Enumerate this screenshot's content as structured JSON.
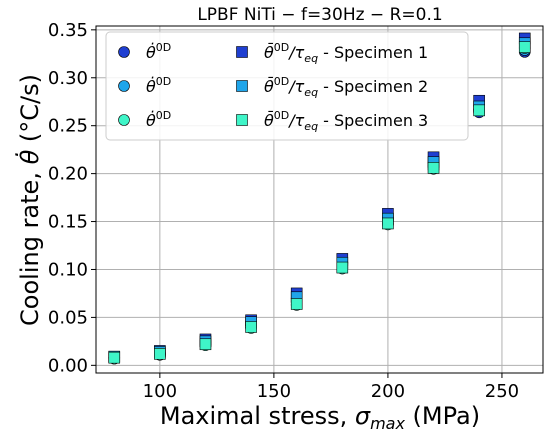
{
  "chart_data": {
    "type": "scatter",
    "title": "LPBF NiTi − f=30Hz − R=0.1",
    "xlabel": "Maximal stress, σmax (MPa)",
    "xlabel_parts": {
      "prefix": "Maximal stress, ",
      "symbol": "σ",
      "subscript": "max",
      "suffix": " (MPa)"
    },
    "ylabel": "Cooling rate, θ̇ (°C/s)",
    "ylabel_parts": {
      "prefix": "Cooling rate, ",
      "symbol": "θ̇",
      "suffix": " (°C/s)"
    },
    "xlim": [
      72,
      268
    ],
    "ylim": [
      -0.008,
      0.354
    ],
    "xticks": [
      100,
      150,
      200,
      250
    ],
    "yticks": [
      0.0,
      0.05,
      0.1,
      0.15,
      0.2,
      0.25,
      0.3,
      0.35
    ],
    "ytick_labels": [
      "0.00",
      "0.05",
      "0.10",
      "0.15",
      "0.20",
      "0.25",
      "0.30",
      "0.35"
    ],
    "grid": true,
    "legend_position": "top-left",
    "x": [
      80,
      100,
      120,
      140,
      160,
      180,
      200,
      220,
      240,
      260
    ],
    "series": [
      {
        "legend": "θ̇⁰ᴰ",
        "marker": "circle",
        "color": "#1f3fd1",
        "values": [
          0.008,
          0.013,
          0.025,
          0.045,
          0.07,
          0.107,
          0.154,
          0.211,
          0.264,
          0.327
        ]
      },
      {
        "legend": "θ̇⁰ᴰ",
        "marker": "circle",
        "color": "#1fa5ea",
        "values": [
          0.008,
          0.012,
          0.023,
          0.042,
          0.067,
          0.104,
          0.151,
          0.208,
          0.266,
          0.329
        ]
      },
      {
        "legend": "θ̇⁰ᴰ",
        "marker": "circle",
        "color": "#3ff5c8",
        "values": [
          0.007,
          0.011,
          0.021,
          0.039,
          0.063,
          0.101,
          0.147,
          0.205,
          0.267,
          0.331
        ]
      },
      {
        "legend": "θ̄⁰ᴰ/τeq - Specimen 1",
        "marker": "square",
        "color": "#1f3fd1",
        "values": [
          0.009,
          0.015,
          0.027,
          0.047,
          0.075,
          0.111,
          0.158,
          0.217,
          0.276,
          0.341
        ]
      },
      {
        "legend": "θ̄⁰ᴰ/τeq - Specimen 2",
        "marker": "square",
        "color": "#1fa5ea",
        "values": [
          0.009,
          0.014,
          0.025,
          0.045,
          0.071,
          0.107,
          0.153,
          0.212,
          0.27,
          0.336
        ]
      },
      {
        "legend": "θ̄⁰ᴰ/τeq - Specimen 3",
        "marker": "square",
        "color": "#3ff5c8",
        "values": [
          0.008,
          0.012,
          0.022,
          0.04,
          0.064,
          0.102,
          0.148,
          0.206,
          0.266,
          0.332
        ]
      }
    ],
    "legend_entries": [
      {
        "marker": "circle",
        "color": "#1f3fd1",
        "base": "θ̇",
        "sup": "0D",
        "sub": "",
        "rest": ""
      },
      {
        "marker": "circle",
        "color": "#1fa5ea",
        "base": "θ̇",
        "sup": "0D",
        "sub": "",
        "rest": ""
      },
      {
        "marker": "circle",
        "color": "#3ff5c8",
        "base": "θ̇",
        "sup": "0D",
        "sub": "",
        "rest": ""
      },
      {
        "marker": "square",
        "color": "#1f3fd1",
        "base": "θ̄",
        "sup": "0D",
        "slash": "/τ",
        "sub": "eq",
        "rest": " - Specimen 1"
      },
      {
        "marker": "square",
        "color": "#1fa5ea",
        "base": "θ̄",
        "sup": "0D",
        "slash": "/τ",
        "sub": "eq",
        "rest": " - Specimen 2"
      },
      {
        "marker": "square",
        "color": "#3ff5c8",
        "base": "θ̄",
        "sup": "0D",
        "slash": "/τ",
        "sub": "eq",
        "rest": " - Specimen 3"
      }
    ]
  }
}
